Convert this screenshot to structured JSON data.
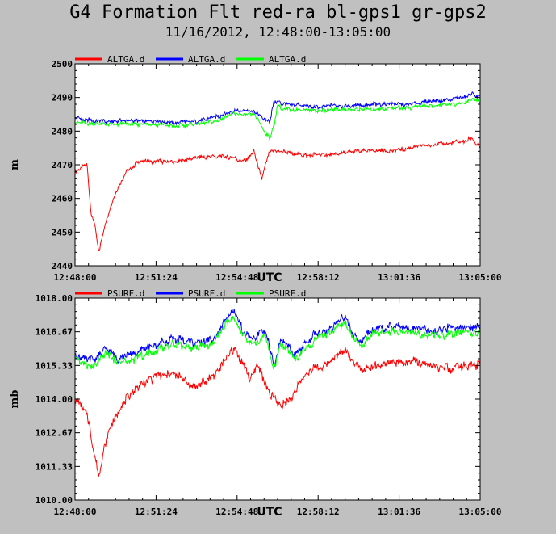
{
  "title": "G4 Formation Flt red-ra bl-gps1 gr-gps2",
  "subtitle": "11/16/2012, 12:48:00-13:05:00",
  "chart_data": [
    {
      "type": "line",
      "ylabel": "m",
      "xlabel": "UTC",
      "ylim": [
        2440,
        2500
      ],
      "yticks": [
        "2440",
        "2450",
        "2460",
        "2470",
        "2480",
        "2490",
        "2500"
      ],
      "xlim": [
        0,
        1020
      ],
      "xticks": [
        {
          "label": "12:48:00",
          "t": 0
        },
        {
          "label": "12:51:24",
          "t": 204
        },
        {
          "label": "12:54:48",
          "t": 408
        },
        {
          "label": "12:58:12",
          "t": 612
        },
        {
          "label": "13:01:36",
          "t": 816
        },
        {
          "label": "13:05:00",
          "t": 1020
        }
      ],
      "legend_position": "top",
      "series": [
        {
          "name": "ALTGA.d",
          "color": "#ff0000",
          "x": [
            0,
            30,
            40,
            50,
            60,
            75,
            90,
            110,
            130,
            160,
            200,
            250,
            300,
            350,
            400,
            430,
            450,
            470,
            490,
            520,
            560,
            600,
            650,
            700,
            750,
            800,
            850,
            900,
            950,
            980,
            1000,
            1010,
            1020
          ],
          "y": [
            2468,
            2470,
            2456,
            2452,
            2444,
            2452,
            2458,
            2464,
            2468,
            2471,
            2471,
            2471,
            2472,
            2472.5,
            2472,
            2471,
            2474,
            2466,
            2474,
            2474,
            2473,
            2473,
            2473,
            2474,
            2474,
            2474,
            2475,
            2476,
            2476.5,
            2477,
            2478,
            2476,
            2475
          ]
        },
        {
          "name": "ALTGA.d",
          "color": "#0000ff",
          "x": [
            0,
            50,
            100,
            150,
            200,
            250,
            300,
            350,
            400,
            450,
            480,
            490,
            500,
            510,
            520,
            560,
            600,
            650,
            700,
            750,
            800,
            850,
            900,
            950,
            980,
            1000,
            1020
          ],
          "y": [
            2484,
            2483,
            2483,
            2483,
            2483,
            2482.5,
            2483,
            2484,
            2486,
            2486,
            2483.5,
            2483,
            2488,
            2489,
            2488,
            2488,
            2487,
            2487.5,
            2487.5,
            2488,
            2488,
            2488,
            2489,
            2489.5,
            2490,
            2491,
            2490
          ]
        },
        {
          "name": "ALTGA.d",
          "color": "#00ff00",
          "x": [
            0,
            50,
            100,
            150,
            200,
            250,
            300,
            350,
            400,
            450,
            480,
            490,
            500,
            510,
            520,
            560,
            600,
            650,
            700,
            750,
            800,
            850,
            900,
            950,
            980,
            1000,
            1020
          ],
          "y": [
            2483,
            2482,
            2482,
            2482,
            2482,
            2481.5,
            2482,
            2483,
            2485,
            2485,
            2479.5,
            2478,
            2481,
            2488,
            2486.5,
            2486.5,
            2486,
            2486.5,
            2486.5,
            2486.5,
            2487,
            2487,
            2487.5,
            2488,
            2488.5,
            2489.5,
            2489
          ]
        }
      ]
    },
    {
      "type": "line",
      "ylabel": "mb",
      "xlabel": "UTC",
      "ylim": [
        1010.0,
        1018.0
      ],
      "yticks": [
        "1010.00",
        "1011.33",
        "1012.67",
        "1014.00",
        "1015.33",
        "1016.67",
        "1018.00"
      ],
      "xlim": [
        0,
        1020
      ],
      "xticks": [
        {
          "label": "12:48:00",
          "t": 0
        },
        {
          "label": "12:51:24",
          "t": 204
        },
        {
          "label": "12:54:48",
          "t": 408
        },
        {
          "label": "12:58:12",
          "t": 612
        },
        {
          "label": "13:01:36",
          "t": 816
        },
        {
          "label": "13:05:00",
          "t": 1020
        }
      ],
      "legend_position": "top",
      "series": [
        {
          "name": "PSURF.d",
          "color": "#ff0000",
          "x": [
            0,
            30,
            40,
            50,
            60,
            75,
            90,
            110,
            130,
            160,
            200,
            250,
            300,
            350,
            380,
            400,
            420,
            440,
            460,
            490,
            520,
            550,
            570,
            600,
            640,
            680,
            700,
            720,
            750,
            800,
            850,
            900,
            950,
            980,
            1000,
            1020
          ],
          "y": [
            1014.0,
            1013.5,
            1012.5,
            1011.8,
            1010.9,
            1012.2,
            1013.0,
            1013.5,
            1014.0,
            1014.5,
            1014.9,
            1015.0,
            1014.5,
            1014.9,
            1015.6,
            1016.0,
            1015.5,
            1014.8,
            1015.4,
            1014.2,
            1013.7,
            1014.2,
            1014.8,
            1015.2,
            1015.4,
            1016.0,
            1015.5,
            1015.2,
            1015.3,
            1015.4,
            1015.5,
            1015.3,
            1015.2,
            1015.3,
            1015.3,
            1015.4
          ]
        },
        {
          "name": "PSURF.d",
          "color": "#0000ff",
          "x": [
            0,
            30,
            50,
            80,
            110,
            150,
            200,
            250,
            300,
            350,
            380,
            400,
            420,
            450,
            480,
            500,
            520,
            550,
            570,
            600,
            640,
            680,
            700,
            720,
            750,
            800,
            850,
            900,
            950,
            980,
            1000,
            1020
          ],
          "y": [
            1015.8,
            1015.6,
            1015.5,
            1016.0,
            1015.6,
            1015.8,
            1016.1,
            1016.4,
            1016.2,
            1016.4,
            1017.2,
            1017.4,
            1016.8,
            1016.3,
            1016.8,
            1015.3,
            1016.4,
            1015.8,
            1016.0,
            1016.5,
            1016.8,
            1017.3,
            1016.6,
            1016.3,
            1016.8,
            1016.9,
            1016.8,
            1016.7,
            1016.8,
            1016.9,
            1016.8,
            1016.9
          ]
        },
        {
          "name": "PSURF.d",
          "color": "#00ff00",
          "x": [
            0,
            30,
            50,
            80,
            110,
            150,
            200,
            250,
            300,
            350,
            380,
            400,
            420,
            450,
            480,
            500,
            520,
            550,
            570,
            600,
            640,
            680,
            700,
            720,
            750,
            800,
            850,
            900,
            950,
            980,
            1000,
            1020
          ],
          "y": [
            1015.6,
            1015.4,
            1015.3,
            1015.8,
            1015.4,
            1015.6,
            1015.9,
            1016.2,
            1016.0,
            1016.2,
            1017.0,
            1017.2,
            1016.6,
            1016.1,
            1016.6,
            1015.1,
            1016.2,
            1015.6,
            1015.8,
            1016.3,
            1016.6,
            1017.1,
            1016.4,
            1016.1,
            1016.6,
            1016.7,
            1016.6,
            1016.5,
            1016.6,
            1016.7,
            1016.6,
            1016.7
          ]
        }
      ]
    }
  ]
}
